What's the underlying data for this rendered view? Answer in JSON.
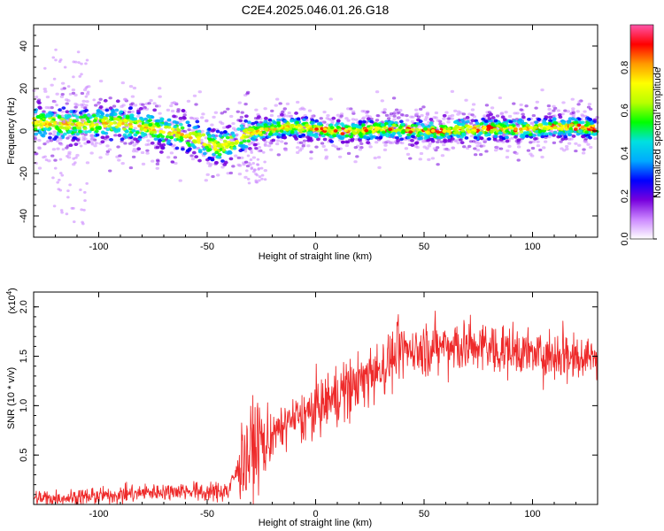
{
  "figure": {
    "title": "C2E4.2025.046.01.26.G18"
  },
  "chart_data": [
    {
      "type": "scatter",
      "subtype": "spectrogram",
      "xlabel": "Height of straight line (km)",
      "ylabel": "Frequency (Hz)",
      "xlim": [
        -130,
        130
      ],
      "ylim": [
        -50,
        50
      ],
      "xticks": [
        -100,
        -50,
        0,
        50,
        100
      ],
      "yticks": [
        -40,
        -20,
        0,
        20,
        40
      ],
      "ridge": {
        "x": [
          -130,
          -110,
          -90,
          -75,
          -60,
          -50,
          -45,
          -38,
          -33,
          -30,
          -20,
          -10,
          0,
          10,
          20,
          30,
          40,
          50,
          60,
          70,
          80,
          90,
          100,
          110,
          120,
          130
        ],
        "y": [
          4,
          3,
          4,
          1,
          -2,
          -5,
          -8,
          -5,
          -2,
          -1,
          1,
          2,
          1,
          0,
          0,
          1,
          1,
          0,
          0,
          1,
          1,
          1,
          1,
          2,
          2,
          1
        ]
      },
      "colorbar": {
        "label": "Normalized spectral amplitude",
        "range": [
          0.0,
          1.0
        ],
        "ticks": [
          "0.0",
          "0.2",
          "0.4",
          "0.6",
          "0.8"
        ],
        "colors": [
          "#ffffff",
          "#cc88ff",
          "#7700dd",
          "#0000ff",
          "#00aaff",
          "#00e0e0",
          "#00ff00",
          "#b8ff00",
          "#ffff00",
          "#ff9900",
          "#ff0000",
          "#ff55aa"
        ]
      }
    },
    {
      "type": "line",
      "xlabel": "Height of straight line (km)",
      "ylabel": "SNR (10 * v/v)",
      "multiplier_label": "(x10",
      "multiplier_exponent": "4",
      "multiplier_close": ")",
      "xlim": [
        -130,
        130
      ],
      "ylim": [
        0,
        2.15
      ],
      "xticks": [
        -100,
        -50,
        0,
        50,
        100
      ],
      "yticks": [
        0.5,
        1.0,
        1.5,
        2.0
      ],
      "ytick_labels": [
        "0.5",
        "1.0",
        "1.5",
        "2.0"
      ],
      "color": "#ee2a2a",
      "trend": {
        "x": [
          -130,
          -100,
          -80,
          -60,
          -45,
          -40,
          -35,
          -30,
          -25,
          -20,
          -10,
          0,
          10,
          20,
          30,
          40,
          50,
          60,
          70,
          80,
          90,
          100,
          110,
          120,
          130
        ],
        "y": [
          0.06,
          0.08,
          0.12,
          0.14,
          0.12,
          0.15,
          0.4,
          0.55,
          0.6,
          0.7,
          0.85,
          0.95,
          1.1,
          1.25,
          1.38,
          1.55,
          1.58,
          1.6,
          1.6,
          1.58,
          1.55,
          1.52,
          1.52,
          1.52,
          1.5
        ]
      }
    }
  ]
}
